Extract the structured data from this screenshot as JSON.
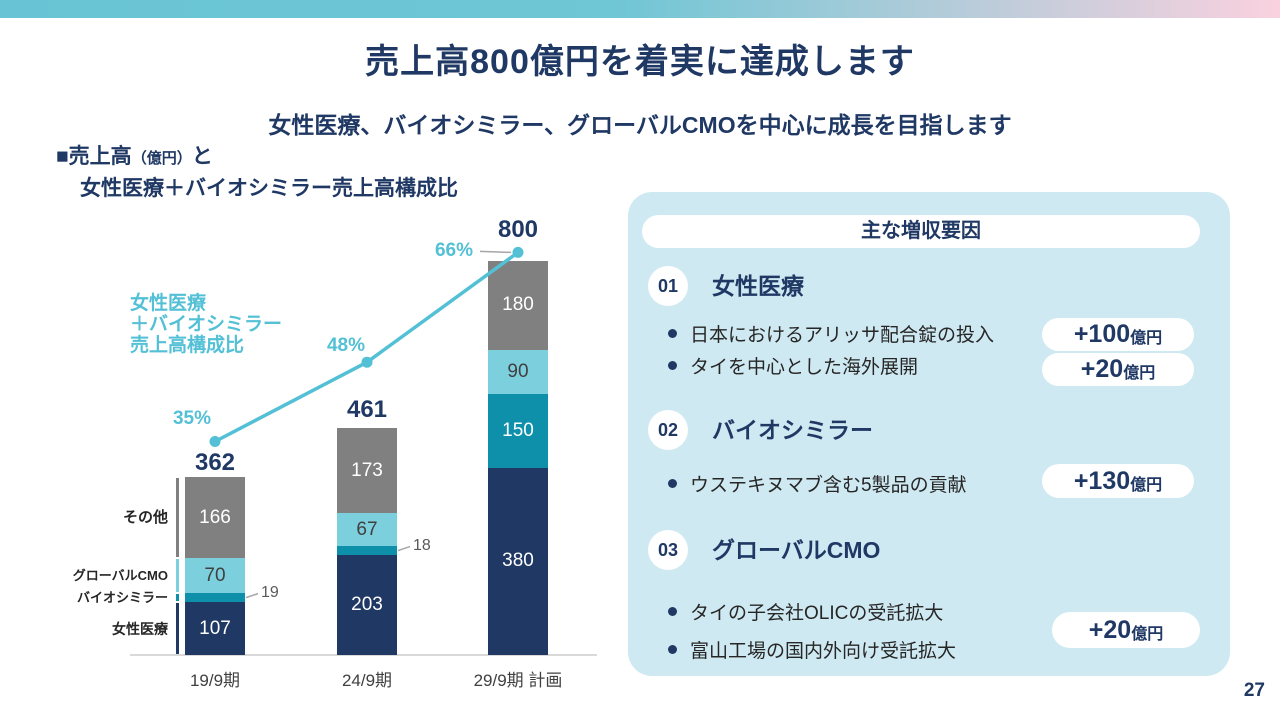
{
  "slide": {
    "title": "売上高800億円を着実に達成します",
    "subtitle": "女性医療、バイオシミラー、グローバルCMOを中心に成長を目指します",
    "page_number": "27"
  },
  "chart": {
    "heading_prefix": "■売上高",
    "heading_unit": "（億円）",
    "heading_tail": "と",
    "heading_line2": "女性医療＋バイオシミラー売上高構成比",
    "ratio_label_lines": [
      "女性医療",
      "＋バイオシミラー",
      "売上高構成比"
    ]
  },
  "chart_data": {
    "type": "bar",
    "subtype": "stacked-bar-with-line",
    "unit": "億円",
    "categories": [
      "19/9期",
      "24/9期",
      "29/9期 計画"
    ],
    "series": [
      {
        "name": "女性医療",
        "color": "#1f3864",
        "label_color": "#ffffff",
        "values": [
          107,
          203,
          380
        ]
      },
      {
        "name": "バイオシミラー",
        "color": "#0e90ab",
        "label_color": "#ffffff",
        "values": [
          19,
          18,
          150
        ]
      },
      {
        "name": "グローバルCMO",
        "color": "#7ccfdd",
        "label_color": "#404040",
        "values": [
          70,
          67,
          90
        ]
      },
      {
        "name": "その他",
        "color": "#808080",
        "label_color": "#ffffff",
        "values": [
          166,
          173,
          180
        ]
      }
    ],
    "totals": [
      362,
      461,
      800
    ],
    "line_series": {
      "name": "女性医療＋バイオシミラー売上高構成比",
      "values_pct": [
        35,
        48,
        66
      ],
      "color": "#53c0d6"
    },
    "callouts": [
      {
        "bar": 0,
        "series": 1,
        "value": 19
      },
      {
        "bar": 1,
        "series": 1,
        "value": 18
      }
    ],
    "ylim": [
      0,
      800
    ],
    "grid": false,
    "y_axis_ticks_visible": false
  },
  "panel": {
    "header": "主な増収要因",
    "sections": [
      {
        "number": "01",
        "title": "女性医療",
        "bullets": [
          "日本におけるアリッサ配合錠の投入",
          "タイを中心とした海外展開"
        ],
        "badges": [
          {
            "value": "+100",
            "unit": "億円"
          },
          {
            "value": "+20",
            "unit": "億円"
          }
        ]
      },
      {
        "number": "02",
        "title": "バイオシミラー",
        "bullets": [
          "ウステキヌマブ含む5製品の貢献"
        ],
        "badges": [
          {
            "value": "+130",
            "unit": "億円"
          }
        ]
      },
      {
        "number": "03",
        "title": "グローバルCMO",
        "bullets": [
          "タイの子会社OLICの受託拡大",
          "富山工場の国内外向け受託拡大"
        ],
        "badges": [
          {
            "value": "+20",
            "unit": "億円"
          }
        ]
      }
    ]
  },
  "colors": {
    "accent_navy": "#1f3864",
    "accent_cyan": "#53c0d6",
    "panel_background": "#cfe9f2",
    "topbar_gradient_left": "#68c4d4",
    "topbar_gradient_right": "#fad1df",
    "axis_line": "#d9d9d9",
    "callout_text": "#595959"
  }
}
